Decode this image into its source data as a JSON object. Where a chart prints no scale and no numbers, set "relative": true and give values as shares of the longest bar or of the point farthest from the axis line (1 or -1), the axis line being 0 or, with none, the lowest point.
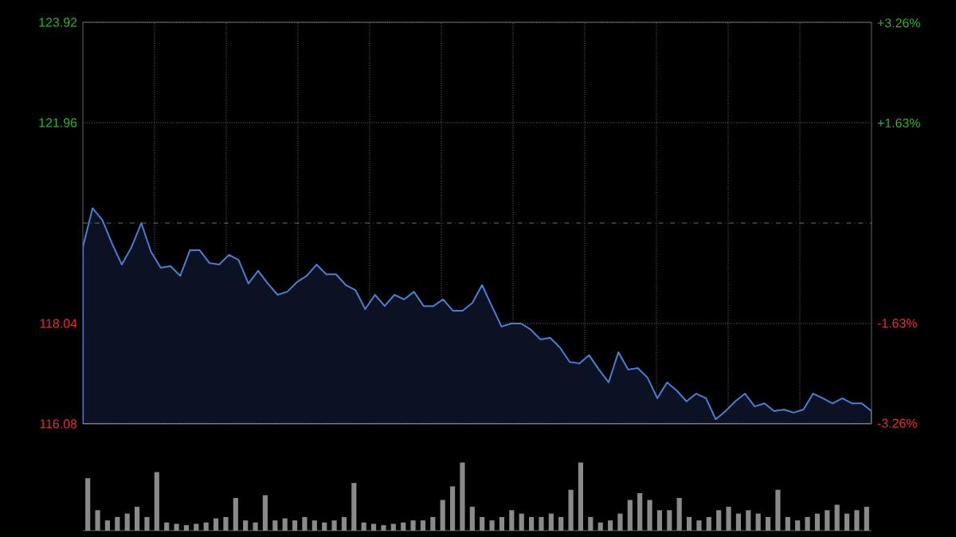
{
  "chart_data": [
    {
      "type": "area",
      "categories": [
        null,
        null,
        null,
        null,
        null,
        null,
        null,
        null,
        null,
        null,
        null,
        null,
        null,
        null,
        null,
        null,
        null,
        null,
        null,
        null,
        null,
        null,
        null,
        null,
        null,
        null,
        null,
        null,
        null,
        null,
        null,
        null,
        null,
        null,
        null,
        null,
        null,
        null,
        null,
        null,
        null,
        null,
        null,
        null,
        null,
        null,
        null,
        null,
        null,
        null,
        null,
        null,
        null,
        null,
        null,
        null,
        null,
        null,
        null,
        null,
        null,
        null,
        null,
        null,
        null,
        null,
        null,
        null,
        null,
        null,
        null,
        null,
        null,
        null,
        null,
        null,
        null,
        null,
        null,
        null,
        null,
        null
      ],
      "series": [
        {
          "color": "#4a7fd4",
          "values": [
            119.53,
            120.29,
            120.06,
            119.6,
            119.19,
            119.53,
            120.0,
            119.44,
            119.13,
            119.16,
            118.97,
            119.47,
            119.47,
            119.22,
            119.19,
            119.38,
            119.28,
            118.82,
            119.07,
            118.82,
            118.6,
            118.66,
            118.85,
            118.97,
            119.19,
            119.0,
            119.0,
            118.79,
            118.69,
            118.32,
            118.6,
            118.38,
            118.6,
            118.51,
            118.66,
            118.38,
            118.38,
            118.51,
            118.29,
            118.29,
            118.44,
            118.79,
            118.38,
            117.98,
            118.04,
            118.04,
            117.92,
            117.73,
            117.76,
            117.57,
            117.29,
            117.26,
            117.42,
            117.14,
            116.89,
            117.48,
            117.14,
            117.17,
            116.98,
            116.58,
            116.89,
            116.73,
            116.52,
            116.67,
            116.58,
            116.17,
            116.33,
            116.52,
            116.67,
            116.42,
            116.48,
            116.33,
            116.36,
            116.3,
            116.36,
            116.67,
            116.58,
            116.48,
            116.58,
            116.48,
            116.48,
            116.33
          ]
        }
      ],
      "ylim": [
        116.08,
        123.92
      ],
      "yticks": [
        {
          "value": 116.08,
          "label": "116.08"
        },
        {
          "value": 118.04,
          "label": "118.04"
        },
        {
          "value": 121.96,
          "label": "121.96"
        },
        {
          "value": 123.92,
          "label": "123.92"
        }
      ],
      "y2lim": [
        -3.27,
        3.27
      ],
      "y2ticks": [
        {
          "value": -3.26,
          "label": "-3.26%"
        },
        {
          "value": -1.63,
          "label": "-1.63%"
        },
        {
          "value": 1.63,
          "label": "+1.63%"
        },
        {
          "value": 3.26,
          "label": "+3.26%"
        }
      ],
      "ref_lines": [
        {
          "axis": "y",
          "value": 120.0,
          "color": "#8c8c8c",
          "line_style": "dashdot"
        }
      ],
      "grid": true,
      "tick_labels": "y"
    },
    {
      "type": "bar",
      "relative": true,
      "color": "#8a8a8a",
      "categories": [
        null,
        null,
        null,
        null,
        null,
        null,
        null,
        null,
        null,
        null,
        null,
        null,
        null,
        null,
        null,
        null,
        null,
        null,
        null,
        null,
        null,
        null,
        null,
        null,
        null,
        null,
        null,
        null,
        null,
        null,
        null,
        null,
        null,
        null,
        null,
        null,
        null,
        null,
        null,
        null,
        null,
        null,
        null,
        null,
        null,
        null,
        null,
        null,
        null,
        null,
        null,
        null,
        null,
        null,
        null,
        null,
        null,
        null,
        null,
        null,
        null,
        null,
        null,
        null,
        null,
        null,
        null,
        null,
        null,
        null,
        null,
        null,
        null,
        null,
        null,
        null,
        null,
        null,
        null,
        null
      ],
      "values": [
        0.77,
        0.3,
        0.15,
        0.2,
        0.25,
        0.35,
        0.2,
        0.86,
        0.12,
        0.1,
        0.08,
        0.1,
        0.12,
        0.18,
        0.2,
        0.48,
        0.15,
        0.12,
        0.52,
        0.15,
        0.18,
        0.15,
        0.2,
        0.15,
        0.12,
        0.15,
        0.2,
        0.7,
        0.12,
        0.1,
        0.08,
        0.1,
        0.12,
        0.15,
        0.15,
        0.2,
        0.45,
        0.65,
        1.0,
        0.35,
        0.2,
        0.15,
        0.2,
        0.3,
        0.25,
        0.2,
        0.2,
        0.25,
        0.2,
        0.6,
        1.0,
        0.2,
        0.12,
        0.15,
        0.25,
        0.45,
        0.55,
        0.45,
        0.3,
        0.3,
        0.48,
        0.2,
        0.15,
        0.2,
        0.3,
        0.35,
        0.25,
        0.3,
        0.25,
        0.2,
        0.6,
        0.2,
        0.15,
        0.2,
        0.25,
        0.3,
        0.38,
        0.25,
        0.3,
        0.35
      ]
    }
  ]
}
